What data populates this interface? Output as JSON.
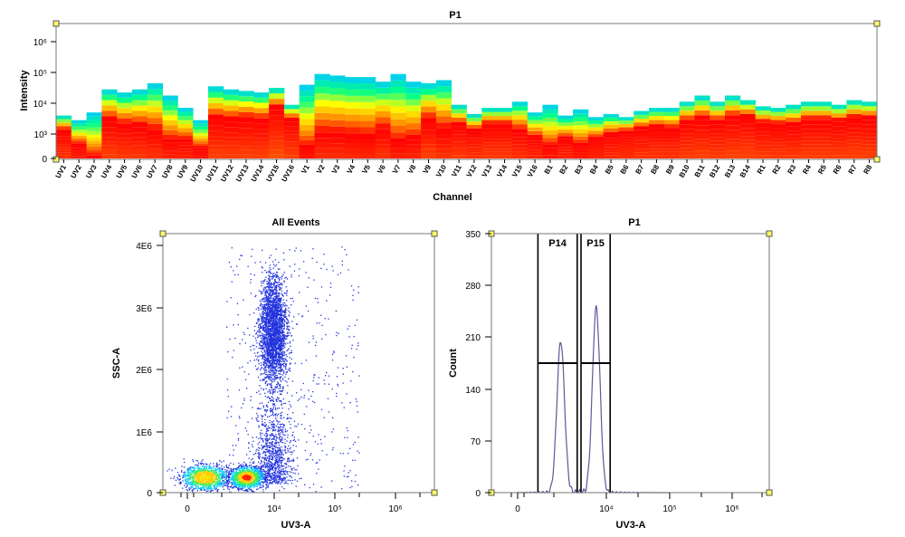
{
  "colors": {
    "handle_fill": "#ffff66",
    "dot_color": "#2233dd",
    "histogram_line": "#5a5a9a",
    "spectrum_scale": [
      "#00c8ff",
      "#00ff88",
      "#ffff00",
      "#ff8800",
      "#ff0000"
    ]
  },
  "chart_data": [
    {
      "type": "heatmap",
      "title": "P1",
      "xlabel": "Channel",
      "ylabel": "Intensity",
      "y_ticks": [
        "0",
        "10³",
        "10⁴",
        "10⁵",
        "10⁶"
      ],
      "categories": [
        "UV1",
        "UV2",
        "UV3",
        "UV4",
        "UV5",
        "UV6",
        "UV7",
        "UV8",
        "UV9",
        "UV10",
        "UV11",
        "UV12",
        "UV13",
        "UV14",
        "UV15",
        "UV16",
        "V1",
        "V2",
        "V3",
        "V4",
        "V5",
        "V6",
        "V7",
        "V8",
        "V9",
        "V10",
        "V11",
        "V12",
        "V13",
        "V14",
        "V15",
        "V16",
        "B1",
        "B2",
        "B3",
        "B4",
        "B5",
        "B6",
        "B7",
        "B8",
        "B9",
        "B10",
        "B11",
        "B12",
        "B13",
        "B14",
        "R1",
        "R2",
        "R3",
        "R4",
        "R5",
        "R6",
        "R7",
        "R8"
      ],
      "band_top": [
        1.6,
        1.45,
        1.7,
        2.45,
        2.35,
        2.45,
        2.65,
        2.25,
        1.85,
        1.45,
        2.55,
        2.45,
        2.4,
        2.35,
        2.5,
        1.95,
        2.6,
        2.95,
        2.9,
        2.85,
        2.85,
        2.7,
        2.95,
        2.7,
        2.65,
        2.75,
        1.95,
        1.65,
        1.85,
        1.85,
        2.05,
        1.7,
        1.95,
        1.6,
        1.8,
        1.55,
        1.65,
        1.55,
        1.75,
        1.85,
        1.85,
        2.05,
        2.25,
        2.05,
        2.25,
        2.1,
        1.9,
        1.85,
        1.95,
        2.05,
        2.05,
        1.95,
        2.1,
        2.05
      ],
      "band_peak": [
        1.15,
        0.6,
        0.1,
        1.5,
        1.35,
        1.3,
        1.15,
        0.8,
        0.8,
        0.45,
        1.55,
        1.5,
        1.55,
        1.5,
        1.9,
        1.5,
        0.5,
        1.05,
        1.05,
        1.0,
        0.95,
        1.2,
        0.75,
        0.85,
        1.5,
        1.2,
        1.35,
        1.15,
        1.35,
        1.35,
        1.15,
        0.9,
        0.55,
        0.85,
        0.6,
        0.85,
        1.0,
        1.1,
        1.2,
        1.25,
        1.2,
        1.45,
        1.55,
        1.45,
        1.6,
        1.6,
        1.4,
        1.35,
        1.35,
        1.5,
        1.5,
        1.45,
        1.55,
        1.55
      ]
    },
    {
      "type": "scatter",
      "title": "All Events",
      "xlabel": "UV3-A",
      "ylabel": "SSC-A",
      "x_scale": "biexponential",
      "x_ticks": [
        "0",
        "10⁴",
        "10⁵",
        "10⁶"
      ],
      "y_ticks": [
        "0",
        "1E6",
        "2E6",
        "3E6",
        "4E6"
      ],
      "ylim": [
        0,
        4200000
      ],
      "clusters": [
        {
          "name": "main",
          "x": 3.98,
          "y": 2600000
        },
        {
          "name": "low-left",
          "x": 3.05,
          "y": 250000
        },
        {
          "name": "low-right",
          "x": 3.75,
          "y": 250000
        }
      ]
    },
    {
      "type": "line",
      "title": "P1",
      "xlabel": "UV3-A",
      "ylabel": "Count",
      "x_ticks": [
        "0",
        "10⁴",
        "10⁵",
        "10⁶"
      ],
      "y_ticks": [
        "0",
        "70",
        "140",
        "210",
        "280",
        "350"
      ],
      "ylim": [
        0,
        350
      ],
      "gates": [
        {
          "label": "P14",
          "x_range": [
            2.92,
            3.54
          ],
          "level": 175
        },
        {
          "label": "P15",
          "x_range": [
            3.6,
            4.06
          ],
          "level": 175
        }
      ],
      "peaks": [
        {
          "x": 3.28,
          "count": 205
        },
        {
          "x": 3.84,
          "count": 250
        }
      ]
    }
  ]
}
